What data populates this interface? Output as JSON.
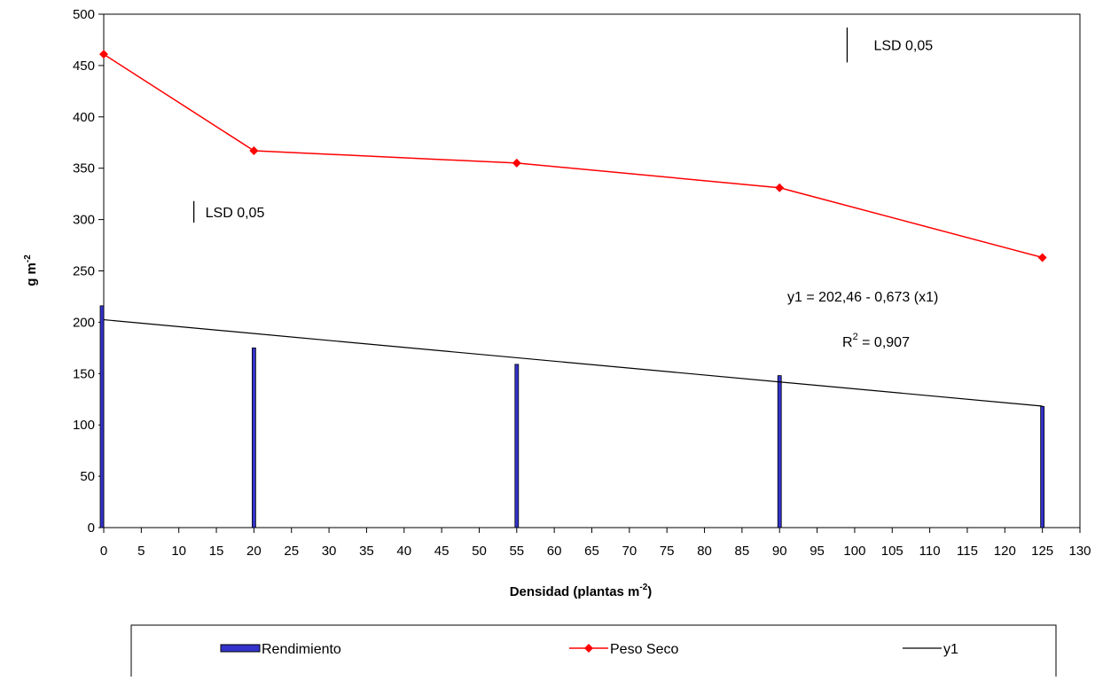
{
  "chart_data": {
    "type": "bar",
    "xlabel": "Densidad (plantas m",
    "xlabel_sup": "-2",
    "xlabel_suffix": ")",
    "ylabel": "g m",
    "ylabel_sup": "-2",
    "xlim": [
      0,
      130
    ],
    "ylim": [
      0,
      500
    ],
    "x_ticks": [
      "0",
      "5",
      "10",
      "15",
      "20",
      "25",
      "30",
      "35",
      "40",
      "45",
      "50",
      "55",
      "60",
      "65",
      "70",
      "75",
      "80",
      "85",
      "90",
      "95",
      "100",
      "105",
      "110",
      "115",
      "120",
      "125",
      "130"
    ],
    "y_ticks": [
      "0",
      "50",
      "100",
      "150",
      "200",
      "250",
      "300",
      "350",
      "400",
      "450",
      "500"
    ],
    "x": [
      0,
      20,
      55,
      90,
      125
    ],
    "series": [
      {
        "name": "Rendimiento",
        "type": "bar",
        "color": "#3333cc",
        "values": [
          216,
          175,
          159,
          148,
          118
        ]
      },
      {
        "name": "Peso Seco",
        "type": "line",
        "marker": "diamond",
        "color": "#ff0000",
        "values": [
          461,
          367,
          355,
          331,
          263
        ]
      },
      {
        "name": "y1",
        "type": "line",
        "color": "#000000",
        "x": [
          0,
          125
        ],
        "values": [
          202.46,
          118.3
        ]
      }
    ],
    "lsd_bars": [
      {
        "label": "LSD 0,05",
        "x": 12,
        "y_low": 297,
        "y_high": 318
      },
      {
        "label": "LSD 0,05",
        "x": 99,
        "y_low": 453,
        "y_high": 487
      }
    ],
    "annotations": {
      "equation": "y1 = 202,46 - 0,673 (x1)",
      "r2_prefix": "R",
      "r2_sup": "2",
      "r2_value": " = 0,907"
    },
    "legend": [
      "Rendimiento",
      "Peso Seco",
      "y1"
    ],
    "legend_placement": "bottom",
    "grid": false
  }
}
